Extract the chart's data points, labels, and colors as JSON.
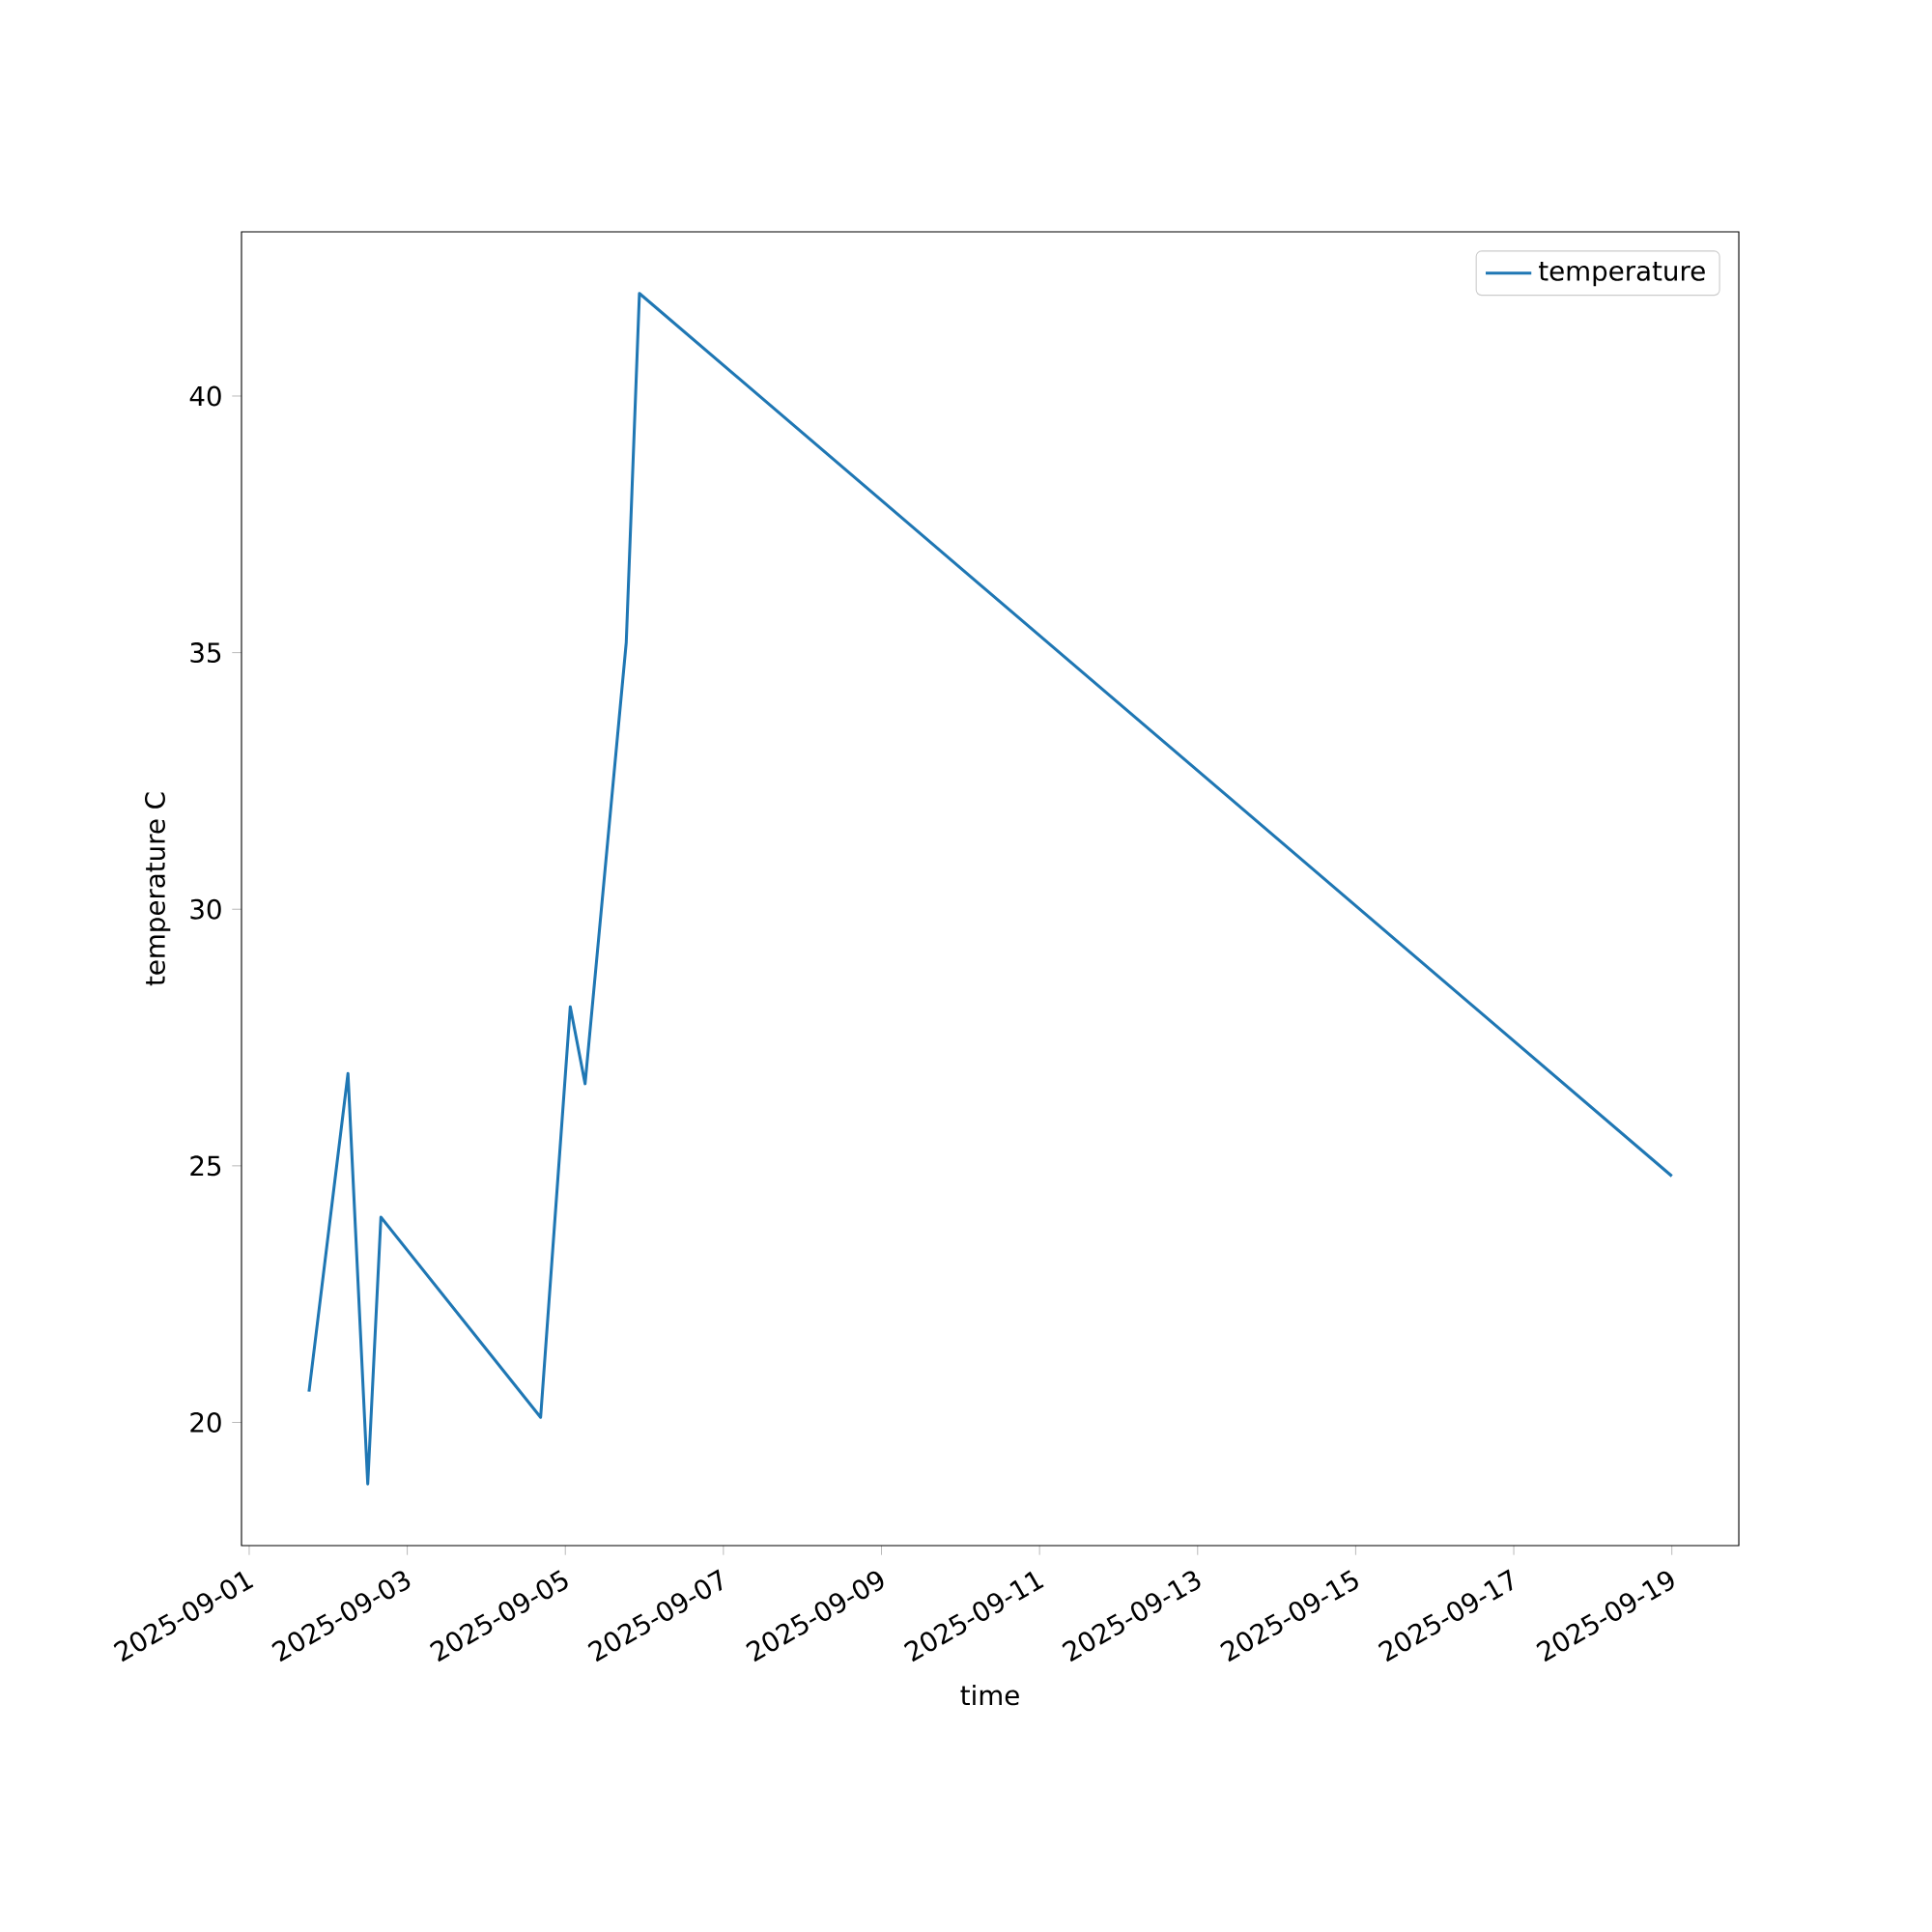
{
  "chart_data": {
    "type": "line",
    "xlabel": "time",
    "ylabel": "temperature C",
    "x": [
      "2025-09-01T18:10",
      "2025-09-02T06:00",
      "2025-09-02T12:00",
      "2025-09-02T16:00",
      "2025-09-04T16:30",
      "2025-09-05T01:30",
      "2025-09-05T06:00",
      "2025-09-05T18:30",
      "2025-09-05T22:30",
      "2025-09-19T00:00"
    ],
    "series": [
      {
        "name": "temperature",
        "color": "#1f77b4",
        "values": [
          20.6,
          26.8,
          18.8,
          24.0,
          20.1,
          28.1,
          26.6,
          35.2,
          42.0,
          24.8
        ]
      }
    ],
    "xlim": [
      "2025-08-31T21:40",
      "2025-09-19T20:20"
    ],
    "ylim": [
      17.6,
      43.2
    ],
    "xticks": [
      "2025-09-01",
      "2025-09-03",
      "2025-09-05",
      "2025-09-07",
      "2025-09-09",
      "2025-09-11",
      "2025-09-13",
      "2025-09-15",
      "2025-09-17",
      "2025-09-19"
    ],
    "yticks": [
      20,
      25,
      30,
      35,
      40
    ],
    "legend": "top right",
    "marker": "none",
    "line_style": "solid",
    "grid": false
  }
}
